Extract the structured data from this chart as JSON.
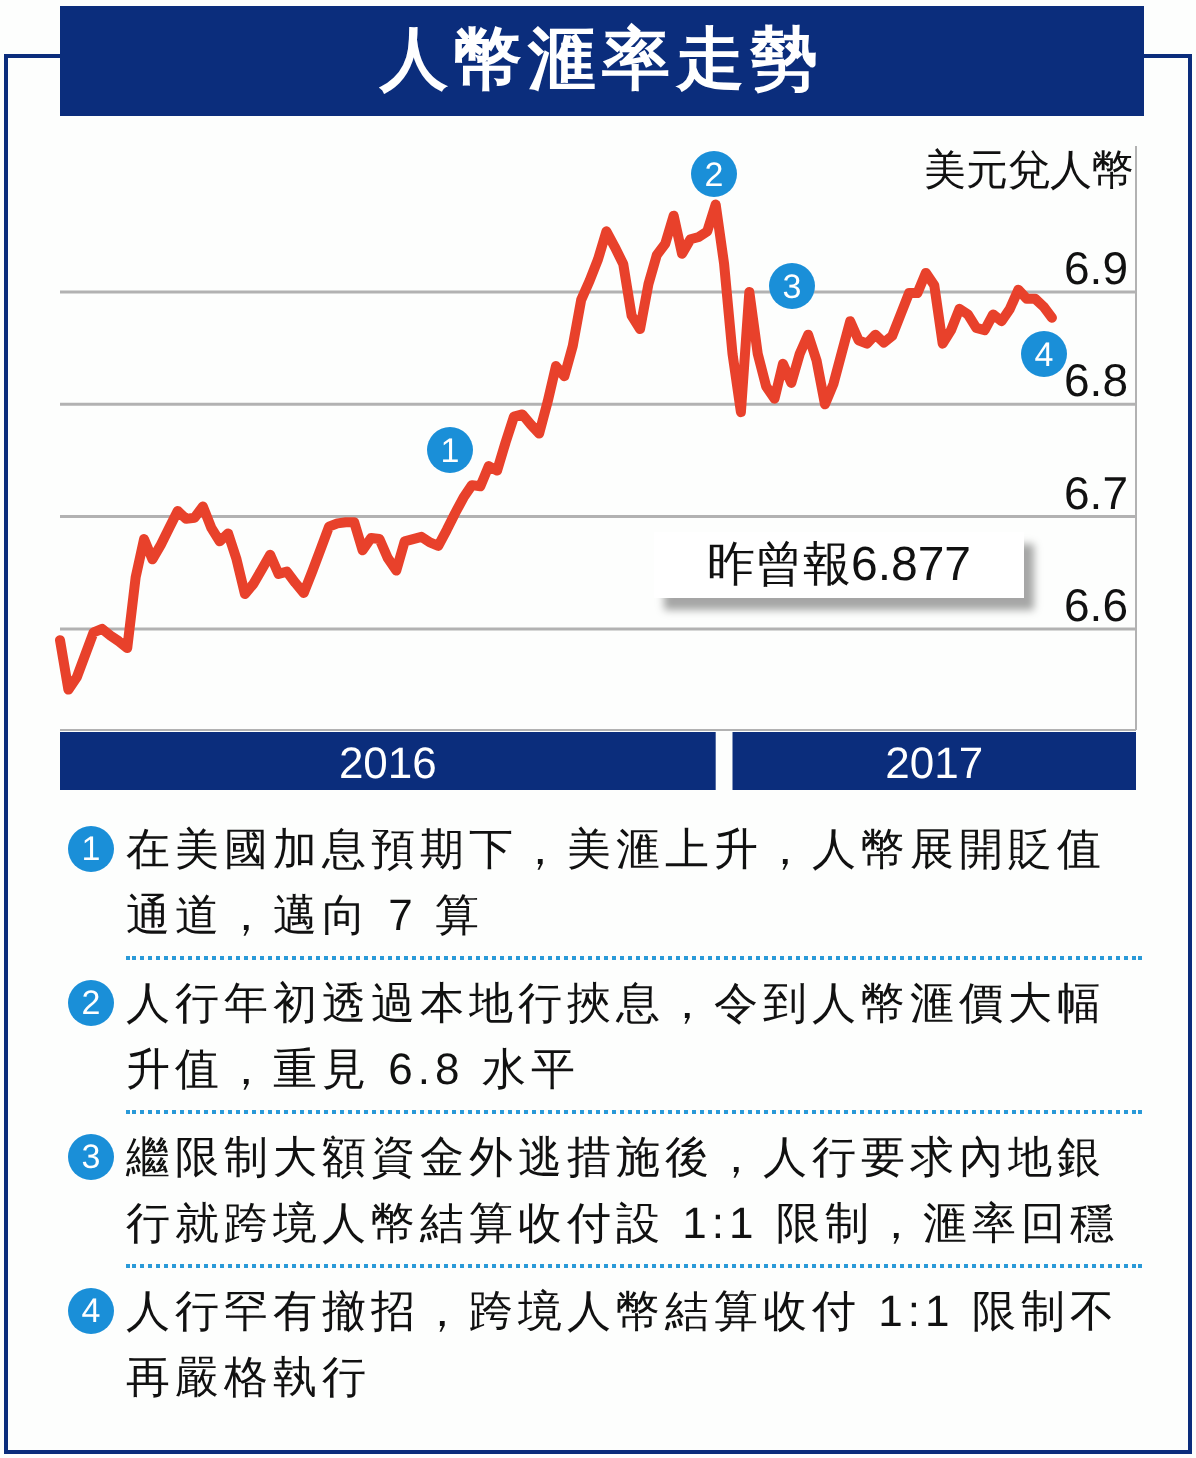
{
  "chart_data": {
    "type": "line",
    "title": "人幣滙率走勢",
    "ylabel": "美元兌人幣",
    "categories": [
      null,
      null,
      null,
      null,
      null,
      null,
      null,
      null,
      null,
      null,
      null,
      null,
      null,
      null,
      null,
      null,
      null,
      null,
      null,
      null,
      null,
      null,
      null,
      null,
      null,
      null,
      null,
      null,
      null,
      null,
      null,
      null,
      null,
      null,
      null,
      null,
      null,
      null,
      null,
      "2016",
      null,
      null,
      null,
      null,
      null,
      null,
      null,
      null,
      null,
      null,
      null,
      null,
      null,
      null,
      null,
      null,
      null,
      null,
      null,
      null,
      null,
      null,
      null,
      null,
      null,
      null,
      null,
      null,
      null,
      null,
      null,
      null,
      null,
      null,
      null,
      null,
      null,
      null,
      null,
      null,
      null,
      null,
      null,
      null,
      null,
      null,
      null,
      null,
      null,
      null,
      null,
      null,
      null,
      null,
      null,
      null,
      null,
      null,
      null,
      null,
      null,
      null,
      null,
      null,
      "2017",
      null,
      null,
      null,
      null,
      null,
      null,
      null,
      null,
      null,
      null,
      null,
      null,
      null,
      null,
      null,
      null,
      null,
      null,
      null,
      null,
      null,
      null,
      null,
      null
    ],
    "series": [
      {
        "color": "#e8412b",
        "values": [
          6.59,
          6.546,
          6.557,
          6.577,
          6.597,
          6.6,
          6.594,
          6.589,
          6.583,
          6.646,
          6.68,
          6.662,
          6.675,
          6.69,
          6.705,
          6.698,
          6.699,
          6.709,
          6.69,
          6.678,
          6.685,
          6.662,
          6.631,
          6.64,
          6.653,
          6.666,
          6.649,
          6.651,
          6.641,
          6.632,
          6.651,
          6.671,
          6.691,
          6.694,
          6.695,
          6.695,
          6.67,
          6.681,
          6.68,
          6.663,
          6.652,
          6.678,
          6.68,
          6.682,
          6.677,
          6.674,
          6.688,
          6.703,
          6.717,
          6.728,
          6.727,
          6.745,
          6.741,
          6.766,
          6.789,
          6.791,
          6.782,
          6.774,
          6.802,
          6.834,
          6.825,
          6.852,
          6.893,
          6.91,
          6.929,
          6.954,
          6.94,
          6.925,
          6.879,
          6.867,
          6.907,
          6.933,
          6.943,
          6.968,
          6.934,
          6.947,
          6.949,
          6.954,
          6.978,
          6.925,
          6.845,
          6.793,
          6.9,
          6.845,
          6.816,
          6.805,
          6.836,
          6.819,
          6.845,
          6.862,
          6.839,
          6.8,
          6.818,
          6.846,
          6.874,
          6.857,
          6.854,
          6.862,
          6.855,
          6.861,
          6.88,
          6.899,
          6.899,
          6.917,
          6.906,
          6.854,
          6.866,
          6.885,
          6.88,
          6.868,
          6.866,
          6.88,
          6.874,
          6.885,
          6.902,
          6.894,
          6.894,
          6.887,
          6.877,
          null,
          null,
          null,
          null,
          null,
          null,
          null,
          null,
          null,
          null
        ]
      }
    ],
    "ylim": [
      6.51,
      7.03
    ],
    "yticks": [
      6.6,
      6.7,
      6.8,
      6.9
    ],
    "grid": "y",
    "annotations": [
      "1",
      "2",
      "3",
      "4",
      "昨曾報6.877",
      "在美國加息預期下，美滙上升，人幣展開貶值通道，邁向 7 算",
      "人行年初透過本地行挾息，令到人幣滙價大幅升值，重見 6.8 水平",
      "繼限制大額資金外逃措施後，人行要求內地銀行就跨境人幣結算收付設 1:1 限制，滙率回穩",
      "人行罕有撤招，跨境人幣結算收付 1:1 限制不再嚴格執行"
    ]
  }
}
